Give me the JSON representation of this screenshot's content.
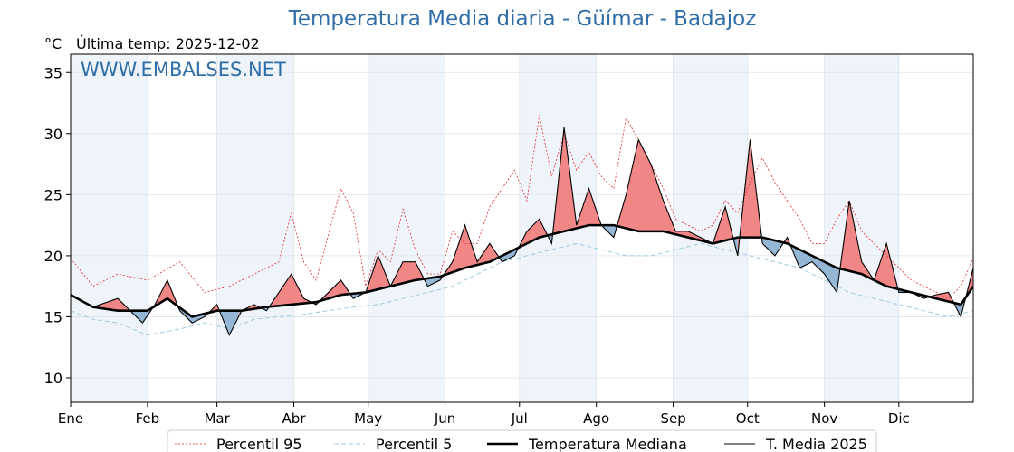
{
  "header": {
    "title": "Temperatura Media diaria - Güímar - Badajoz",
    "unit": "°C",
    "last_temp": "Última temp: 2025-12-02"
  },
  "watermark": "WWW.EMBALSES.NET",
  "colors": {
    "title": "#2f6da8",
    "p95": "#e8282b",
    "p5": "#9ecae1",
    "above_median_fill": "#f08080",
    "below_median_fill": "#8fb3d3",
    "below_median_fill_dark": "#2b6aa6",
    "median": "#000000",
    "current": "#000000",
    "band": "#eef4fa"
  },
  "chart_data": {
    "type": "line",
    "title": "Temperatura Media diaria - Güímar - Badajoz",
    "ylabel": "°C",
    "xlabel": "",
    "ylim": [
      8,
      36.5
    ],
    "xlim": [
      1,
      365
    ],
    "y_ticks": [
      10,
      15,
      20,
      25,
      30,
      35
    ],
    "grid": true,
    "month_labels": [
      "Ene",
      "Feb",
      "Mar",
      "Abr",
      "May",
      "Jun",
      "Jul",
      "Ago",
      "Sep",
      "Oct",
      "Nov",
      "Dic"
    ],
    "month_start_day": [
      1,
      32,
      60,
      91,
      121,
      152,
      182,
      213,
      244,
      274,
      305,
      335
    ],
    "legend_position": "bottom-center",
    "series": [
      {
        "name": "Percentil 95",
        "style": "dotted-thin-red",
        "x": [
          1,
          10,
          20,
          32,
          45,
          55,
          65,
          75,
          85,
          90,
          95,
          100,
          110,
          115,
          120,
          125,
          130,
          135,
          140,
          145,
          150,
          155,
          160,
          165,
          170,
          175,
          180,
          185,
          190,
          195,
          200,
          205,
          210,
          215,
          220,
          225,
          230,
          235,
          240,
          245,
          250,
          255,
          260,
          265,
          270,
          275,
          280,
          285,
          290,
          295,
          300,
          305,
          310,
          315,
          320,
          325,
          330,
          335,
          340,
          345,
          350,
          355,
          360,
          365
        ],
        "y": [
          19.8,
          17.5,
          18.5,
          18.0,
          19.5,
          17.0,
          17.5,
          18.5,
          19.5,
          23.5,
          19.5,
          18.0,
          25.5,
          23.5,
          17.5,
          20.5,
          19.5,
          23.8,
          20.5,
          18.5,
          18.5,
          22.0,
          21.0,
          21.0,
          24.0,
          25.5,
          27.0,
          24.5,
          31.5,
          26.5,
          30.0,
          27.0,
          28.5,
          26.5,
          25.5,
          31.3,
          29.5,
          27.5,
          25.5,
          23.0,
          22.5,
          22.0,
          22.5,
          24.5,
          23.5,
          26.0,
          28.0,
          26.0,
          24.5,
          23.0,
          21.0,
          21.0,
          23.0,
          24.5,
          22.0,
          21.0,
          20.0,
          19.0,
          18.0,
          17.5,
          17.0,
          16.5,
          17.5,
          19.8
        ]
      },
      {
        "name": "Percentil 5",
        "style": "dashed-thin-lightblue",
        "x": [
          1,
          10,
          20,
          32,
          45,
          55,
          65,
          75,
          85,
          95,
          105,
          115,
          125,
          135,
          145,
          155,
          165,
          175,
          185,
          195,
          205,
          215,
          225,
          235,
          245,
          255,
          265,
          275,
          285,
          295,
          305,
          315,
          325,
          335,
          345,
          355,
          365
        ],
        "y": [
          15.5,
          14.8,
          14.5,
          13.5,
          14.0,
          14.5,
          14.0,
          14.8,
          15.0,
          15.2,
          15.5,
          15.8,
          16.0,
          16.5,
          17.0,
          17.5,
          18.5,
          19.5,
          20.0,
          20.5,
          21.0,
          20.5,
          20.0,
          20.0,
          20.5,
          21.0,
          20.5,
          20.0,
          19.5,
          19.0,
          18.0,
          17.0,
          16.5,
          16.0,
          15.5,
          15.0,
          15.5
        ]
      },
      {
        "name": "Temperatura Mediana",
        "style": "thick-black",
        "x": [
          1,
          10,
          20,
          32,
          40,
          50,
          60,
          70,
          80,
          90,
          100,
          110,
          120,
          130,
          140,
          150,
          160,
          170,
          180,
          190,
          200,
          210,
          220,
          230,
          240,
          250,
          260,
          270,
          280,
          290,
          300,
          310,
          320,
          330,
          340,
          350,
          360,
          365
        ],
        "y": [
          16.8,
          15.8,
          15.5,
          15.5,
          16.5,
          15.0,
          15.5,
          15.5,
          15.8,
          16.0,
          16.2,
          16.8,
          17.0,
          17.5,
          18.0,
          18.3,
          19.0,
          19.5,
          20.5,
          21.5,
          22.0,
          22.5,
          22.5,
          22.0,
          22.0,
          21.5,
          21.0,
          21.5,
          21.5,
          21.0,
          20.0,
          19.0,
          18.5,
          17.5,
          17.0,
          16.5,
          16.0,
          17.5
        ]
      },
      {
        "name": "T. Media 2025",
        "style": "thin-black",
        "x": [
          1,
          10,
          20,
          30,
          35,
          40,
          45,
          50,
          55,
          60,
          65,
          70,
          75,
          80,
          85,
          90,
          95,
          100,
          105,
          110,
          115,
          120,
          125,
          130,
          135,
          140,
          145,
          150,
          155,
          160,
          165,
          170,
          175,
          180,
          185,
          190,
          195,
          200,
          205,
          210,
          215,
          220,
          225,
          230,
          235,
          240,
          245,
          250,
          255,
          260,
          265,
          270,
          275,
          280,
          285,
          290,
          295,
          300,
          305,
          310,
          315,
          320,
          325,
          330,
          335,
          340,
          345,
          350,
          355,
          360,
          365
        ],
        "y": [
          16.8,
          15.8,
          16.5,
          14.5,
          16.0,
          18.0,
          15.5,
          14.5,
          15.0,
          16.0,
          13.5,
          15.5,
          16.0,
          15.5,
          17.0,
          18.5,
          16.5,
          16.0,
          17.0,
          18.0,
          16.5,
          17.0,
          20.0,
          17.5,
          19.5,
          19.5,
          17.5,
          18.0,
          19.5,
          22.5,
          19.5,
          21.0,
          19.5,
          20.0,
          22.0,
          23.0,
          21.0,
          30.5,
          22.5,
          25.5,
          22.5,
          21.5,
          25.0,
          29.5,
          27.5,
          24.5,
          22.0,
          22.0,
          21.5,
          21.0,
          24.0,
          20.0,
          29.5,
          21.0,
          20.0,
          21.5,
          19.0,
          19.5,
          18.5,
          17.0,
          24.5,
          19.5,
          18.0,
          21.0,
          17.0,
          17.0,
          16.5,
          16.8,
          17.0,
          15.0,
          19.0
        ]
      }
    ]
  },
  "legend": {
    "items": [
      {
        "label": "Percentil 95"
      },
      {
        "label": "Percentil 5"
      },
      {
        "label": "Temperatura Mediana"
      },
      {
        "label": "T. Media 2025"
      }
    ]
  }
}
